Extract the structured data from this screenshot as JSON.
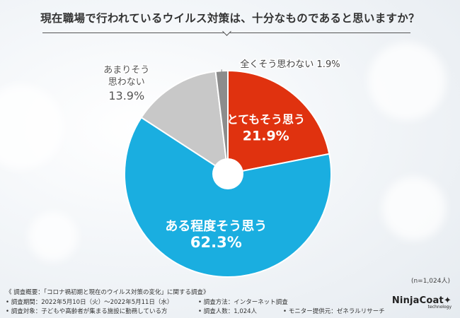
{
  "title": "現在職場で行われているウイルス対策は、十分なものであると思いますか？",
  "sample_size": "(n=1,024人)",
  "chart_data": {
    "type": "pie",
    "title": "現在職場で行われているウイルス対策は、十分なものであると思いますか？",
    "slices": [
      {
        "label": "とてもそう思う",
        "value": 21.9,
        "value_text": "21.9%",
        "color": "#e0320f"
      },
      {
        "label": "ある程度そう思う",
        "value": 62.3,
        "value_text": "62.3%",
        "color": "#1aaee0"
      },
      {
        "label": "あまりそう思わない",
        "value": 13.9,
        "value_text": "13.9%",
        "color": "#c8c8c8"
      },
      {
        "label": "全くそう思わない",
        "value": 1.9,
        "value_text": "1.9%",
        "color": "#8c8c8c"
      }
    ]
  },
  "notes": {
    "summary": "《 調査概要：「コロナ禍初期と現在のウイルス対策の変化」に関する調査》",
    "period": "• 調査期間：2022年5月10日（火）～2022年5月11日（水）",
    "method": "• 調査方法：インターネット調査",
    "target": "• 調査対象：子どもや高齢者が集まる施設に勤務している方",
    "count": "• 調査人数：1,024人",
    "provider": "• モニター提供元：ゼネラルリサーチ"
  },
  "logo": {
    "main": "NinjaCoat✦",
    "sub": "technology"
  }
}
